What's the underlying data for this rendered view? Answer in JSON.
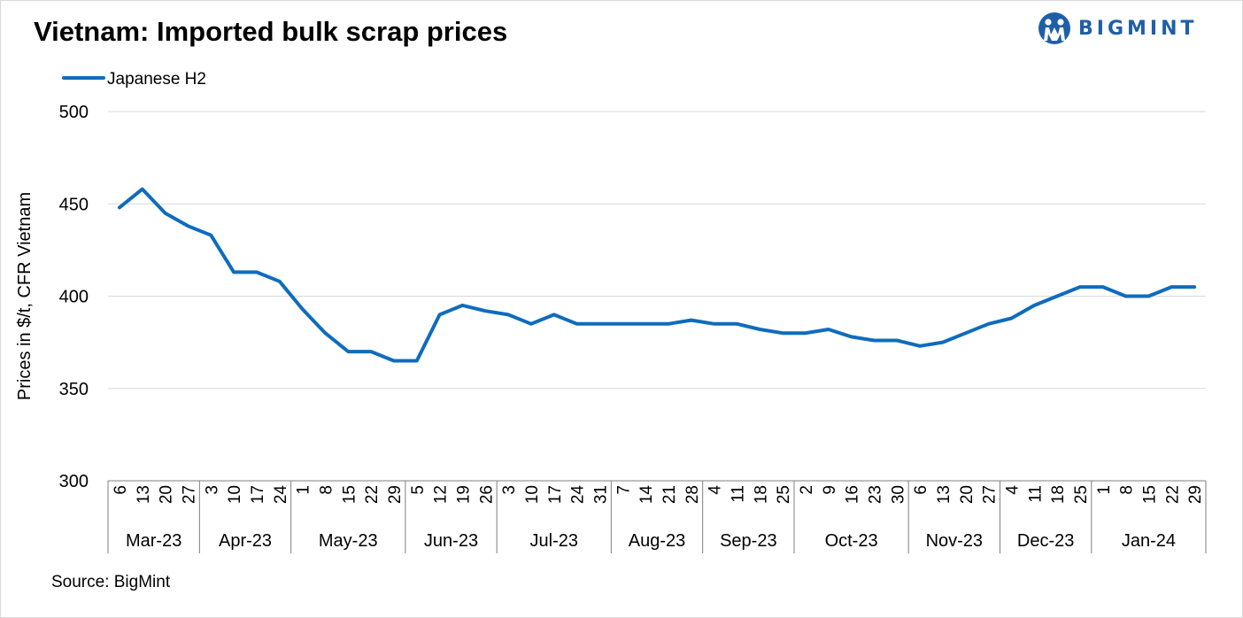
{
  "header": {
    "title": "Vietnam: Imported bulk scrap prices",
    "logo_text": "BIGMINT"
  },
  "footer": {
    "source": "Source: BigMint"
  },
  "colors": {
    "series": "#0f6cbd",
    "grid": "#d9d9d9",
    "brand": "#1f5fa8"
  },
  "chart_data": {
    "type": "line",
    "title": "Vietnam: Imported bulk scrap prices",
    "ylabel": "Prices in $/t, CFR Vietnam",
    "xlabel": "",
    "ylim": [
      300,
      500
    ],
    "yticks": [
      300,
      350,
      400,
      450,
      500
    ],
    "grid": true,
    "legend_position": "top-left",
    "days": [
      "6",
      "13",
      "20",
      "27",
      "3",
      "10",
      "17",
      "24",
      "1",
      "8",
      "15",
      "22",
      "29",
      "5",
      "12",
      "19",
      "26",
      "3",
      "10",
      "17",
      "24",
      "31",
      "7",
      "14",
      "21",
      "28",
      "4",
      "11",
      "18",
      "25",
      "2",
      "9",
      "16",
      "23",
      "30",
      "6",
      "13",
      "20",
      "27",
      "4",
      "11",
      "18",
      "25",
      "1",
      "8",
      "15",
      "22",
      "29"
    ],
    "months": [
      {
        "label": "Mar-23",
        "count": 4
      },
      {
        "label": "Apr-23",
        "count": 4
      },
      {
        "label": "May-23",
        "count": 5
      },
      {
        "label": "Jun-23",
        "count": 4
      },
      {
        "label": "Jul-23",
        "count": 5
      },
      {
        "label": "Aug-23",
        "count": 4
      },
      {
        "label": "Sep-23",
        "count": 4
      },
      {
        "label": "Oct-23",
        "count": 5
      },
      {
        "label": "Nov-23",
        "count": 4
      },
      {
        "label": "Dec-23",
        "count": 4
      },
      {
        "label": "Jan-24",
        "count": 5
      }
    ],
    "series": [
      {
        "name": "Japanese H2",
        "values": [
          448,
          458,
          445,
          438,
          433,
          413,
          413,
          408,
          393,
          380,
          370,
          370,
          365,
          365,
          390,
          395,
          392,
          390,
          385,
          390,
          385,
          385,
          385,
          385,
          385,
          387,
          385,
          385,
          382,
          380,
          380,
          382,
          378,
          376,
          376,
          373,
          375,
          380,
          385,
          388,
          395,
          400,
          405,
          405,
          400,
          400,
          405,
          405
        ]
      }
    ]
  }
}
